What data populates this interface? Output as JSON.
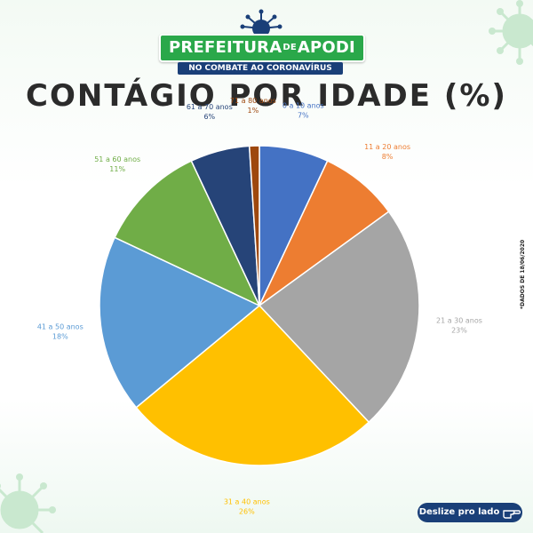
{
  "header": {
    "logo_main_left": "PREFEITURA",
    "logo_main_de": "DE",
    "logo_main_right": "APODI",
    "logo_sub": "NO COMBATE AO CORONAVÍRUS",
    "logo_color": "#2aa84a",
    "sub_color": "#1a3f78"
  },
  "side_note": "*DADOS DE 18/06/2020",
  "cta": {
    "label": "Deslize pro lado",
    "icon": "pointing-hand-icon"
  },
  "chart_data": {
    "type": "pie",
    "title": "CONTÁGIO POR IDADE (%)",
    "slices": [
      {
        "label": "0 a 10 anos",
        "value": 7,
        "value_label": "7%",
        "color": "#4472c4"
      },
      {
        "label": "11 a 20 anos",
        "value": 8,
        "value_label": "8%",
        "color": "#ed7d31"
      },
      {
        "label": "21 a 30 anos",
        "value": 23,
        "value_label": "23%",
        "color": "#a5a5a5"
      },
      {
        "label": "31 a 40 anos",
        "value": 26,
        "value_label": "26%",
        "color": "#ffc000"
      },
      {
        "label": "41 a 50 anos",
        "value": 18,
        "value_label": "18%",
        "color": "#5b9bd5"
      },
      {
        "label": "51 a 60 anos",
        "value": 11,
        "value_label": "11%",
        "color": "#70ad47"
      },
      {
        "label": "61 a 70 anos",
        "value": 6,
        "value_label": "6%",
        "color": "#264478"
      },
      {
        "label": "71 a 80 anos",
        "value": 1,
        "value_label": "1%",
        "color": "#9e480e"
      }
    ]
  }
}
